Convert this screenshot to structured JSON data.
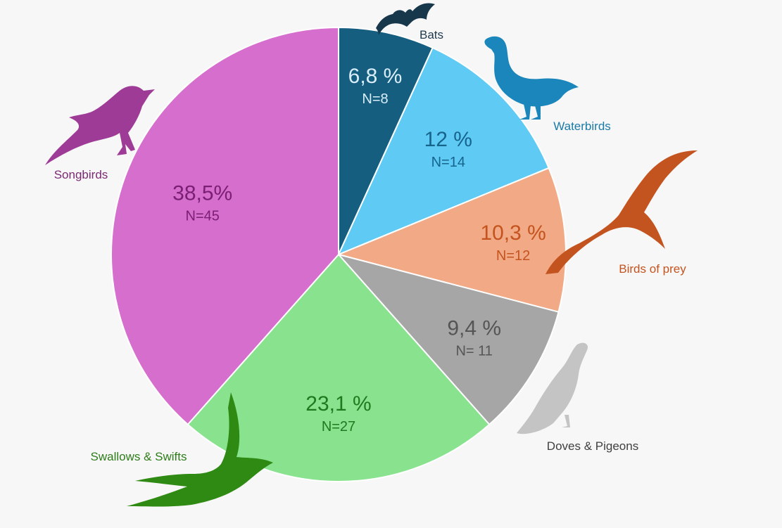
{
  "chart_data": {
    "type": "pie",
    "start_angle": "12 o'clock",
    "direction": "clockwise",
    "legend": "none",
    "slices": [
      {
        "name": "Bats",
        "percent": 6.8,
        "percent_label": "6,8 %",
        "count": 8,
        "count_label": "N=8",
        "color": "#155e80",
        "value_color": "#d9eefa",
        "name_color": "#1f3a4d",
        "icon": "bat-icon"
      },
      {
        "name": "Waterbirds",
        "percent": 12,
        "percent_label": "12 %",
        "count": 14,
        "count_label": "N=14",
        "color": "#5fcbf5",
        "value_color": "#16648c",
        "name_color": "#1b7aa6",
        "icon": "duck-icon"
      },
      {
        "name": "Birds of prey",
        "percent": 10.3,
        "percent_label": "10,3 %",
        "count": 12,
        "count_label": "N=12",
        "color": "#f2a985",
        "value_color": "#c4541f",
        "name_color": "#c4541f",
        "icon": "kite-icon"
      },
      {
        "name": "Doves & Pigeons",
        "percent": 9.4,
        "percent_label": "9,4 %",
        "count": 11,
        "count_label": "N= 11",
        "color": "#a6a6a6",
        "value_color": "#555555",
        "name_color": "#404040",
        "icon": "pigeon-icon"
      },
      {
        "name": "Swallows & Swifts",
        "percent": 23.1,
        "percent_label": "23,1 %",
        "count": 27,
        "count_label": "N=27",
        "color": "#88e28e",
        "value_color": "#1f7a1f",
        "name_color": "#2e7d1a",
        "icon": "swallow-icon"
      },
      {
        "name": "Songbirds",
        "percent": 38.5,
        "percent_label": "38,5%",
        "count": 45,
        "count_label": "N=45",
        "color": "#d66ecd",
        "value_color": "#7a1f73",
        "name_color": "#7a2a72",
        "icon": "songbird-icon"
      }
    ]
  }
}
